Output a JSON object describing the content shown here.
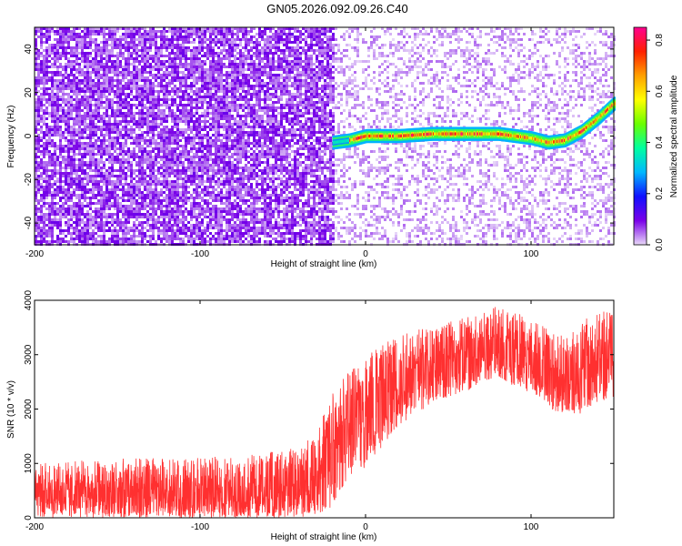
{
  "figure": {
    "title": "GN05.2026.092.09.26.C40"
  },
  "chart_data": [
    {
      "type": "heatmap",
      "xlabel": "Height of straight line (km)",
      "ylabel": "Frequency (Hz)",
      "xlim": [
        -200,
        150
      ],
      "ylim": [
        -50,
        50
      ],
      "xticks": [
        -200,
        -100,
        0,
        100
      ],
      "yticks": [
        -40,
        -20,
        0,
        20,
        40
      ],
      "noise_region_left": {
        "x": [
          -200,
          -20
        ],
        "amplitude": "approximately 0.05-0.1"
      },
      "noise_region_right": {
        "x": [
          -20,
          150
        ],
        "amplitude": "approximately 0.0-0.05"
      },
      "ridge": {
        "x": [
          -20,
          -10,
          0,
          20,
          40,
          60,
          80,
          100,
          110,
          120,
          130,
          140,
          150
        ],
        "freq": [
          -3,
          -2,
          0,
          0,
          1,
          1,
          1,
          -1,
          -3,
          -2,
          2,
          8,
          15
        ],
        "peak_amplitude": 0.85
      },
      "colorbar": {
        "label": "Normalized spectral amplitude",
        "range": [
          0.0,
          0.85
        ],
        "ticks": [
          "0.0",
          "0.2",
          "0.4",
          "0.6",
          "0.8"
        ],
        "colors": [
          "#e8d8f8",
          "#7a00e8",
          "#1010ff",
          "#00b8ff",
          "#00ffa0",
          "#6aff00",
          "#ffff00",
          "#ffa000",
          "#ff2000",
          "#ff0090"
        ]
      },
      "grid": false
    },
    {
      "type": "line",
      "xlabel": "Height of straight line (km)",
      "ylabel": "SNR (10 * v/v)",
      "xlim": [
        -200,
        150
      ],
      "ylim": [
        0,
        4000
      ],
      "xticks": [
        -200,
        -100,
        0,
        100
      ],
      "yticks": [
        0,
        1000,
        2000,
        3000,
        4000
      ],
      "color": "#ff3030",
      "envelope": {
        "x": [
          -200,
          -150,
          -100,
          -60,
          -40,
          -30,
          -20,
          -10,
          0,
          10,
          20,
          40,
          60,
          80,
          90,
          100,
          110,
          120,
          130,
          140,
          150
        ],
        "min": [
          0,
          0,
          0,
          0,
          0,
          50,
          200,
          700,
          900,
          1300,
          1700,
          2100,
          2300,
          2600,
          2400,
          2300,
          2000,
          1900,
          1900,
          2100,
          2200
        ],
        "max": [
          1000,
          1100,
          1100,
          1200,
          1300,
          1600,
          2300,
          2800,
          3000,
          3300,
          3500,
          3500,
          3700,
          3900,
          3800,
          3700,
          3500,
          3400,
          3600,
          3800,
          3800
        ],
        "mean": [
          500,
          500,
          500,
          500,
          600,
          800,
          1300,
          1900,
          2100,
          2500,
          2700,
          2900,
          3000,
          3300,
          3200,
          3000,
          2800,
          2600,
          2700,
          2900,
          3000
        ]
      },
      "grid": false
    }
  ]
}
